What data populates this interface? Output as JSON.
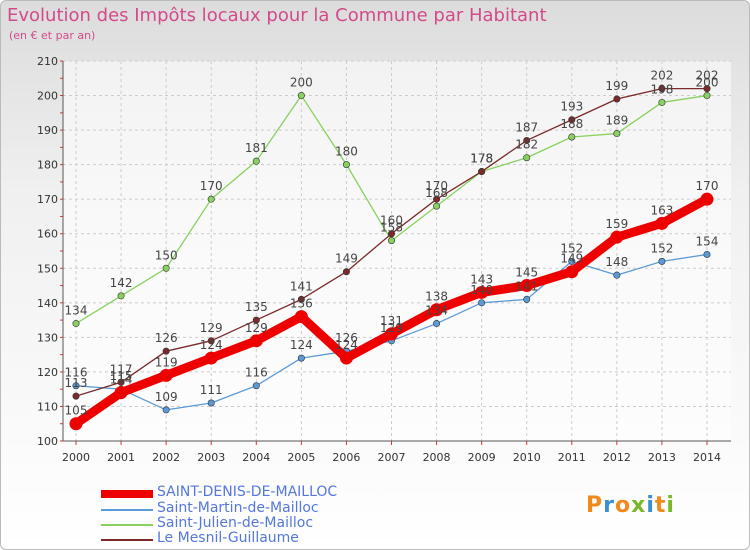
{
  "title": "Evolution des Impôts locaux pour la Commune par Habitant",
  "subtitle": "(en € et par an)",
  "logo": {
    "text": "Proxiti",
    "colors": [
      "#f08a1c",
      "#3a8fd0",
      "#f08a1c",
      "#7ab828",
      "#3a8fd0",
      "#f08a1c",
      "#7ab828"
    ]
  },
  "chart_data": {
    "type": "line",
    "title": "Evolution des Impôts locaux pour la Commune par Habitant",
    "ylabel": "(en € et par an)",
    "xlabel": "",
    "x": [
      "2000",
      "2001",
      "2002",
      "2003",
      "2004",
      "2005",
      "2006",
      "2007",
      "2008",
      "2009",
      "2010",
      "2011",
      "2012",
      "2013",
      "2014"
    ],
    "ylim": [
      100,
      210
    ],
    "yticks": [
      "100",
      "110",
      "120",
      "130",
      "140",
      "150",
      "160",
      "170",
      "180",
      "190",
      "200",
      "210"
    ],
    "series": [
      {
        "name": "SAINT-DENIS-DE-MAILLOC",
        "color": "#ee0000",
        "thick": true,
        "values": [
          105,
          114,
          119,
          124,
          129,
          136,
          124,
          131,
          138,
          143,
          145,
          149,
          159,
          163,
          170
        ],
        "labels": [
          "105",
          "114",
          "119",
          "124",
          "129",
          "136",
          "124",
          "131",
          "138",
          "143",
          "145",
          "149",
          "159",
          "163",
          "170"
        ]
      },
      {
        "name": "Saint-Martin-de-Mailloc",
        "color": "#5b9bd5",
        "thick": false,
        "values": [
          116,
          115,
          109,
          111,
          116,
          124,
          126,
          129,
          134,
          140,
          141,
          152,
          148,
          152,
          154
        ],
        "labels": [
          "116",
          "115",
          "109",
          "111",
          "116",
          "124",
          "126",
          "129",
          "134",
          "140",
          "141",
          "152",
          "148",
          "152",
          "154"
        ]
      },
      {
        "name": "Saint-Julien-de-Mailloc",
        "color": "#88d160",
        "thick": false,
        "values": [
          134,
          142,
          150,
          170,
          181,
          200,
          180,
          158,
          168,
          178,
          182,
          188,
          189,
          198,
          200
        ],
        "labels": [
          "134",
          "142",
          "150",
          "170",
          "181",
          "200",
          "180",
          "158",
          "168",
          "178",
          "182",
          "188",
          "189",
          "198",
          "200"
        ]
      },
      {
        "name": "Le Mesnil-Guillaume",
        "color": "#7a2a2a",
        "thick": false,
        "values": [
          113,
          117,
          126,
          129,
          135,
          141,
          149,
          160,
          170,
          178,
          187,
          193,
          199,
          202,
          202
        ],
        "labels": [
          "113",
          "117",
          "126",
          "129",
          "135",
          "141",
          "149",
          "160",
          "170",
          "178",
          "187",
          "193",
          "199",
          "202",
          "202"
        ]
      }
    ]
  }
}
